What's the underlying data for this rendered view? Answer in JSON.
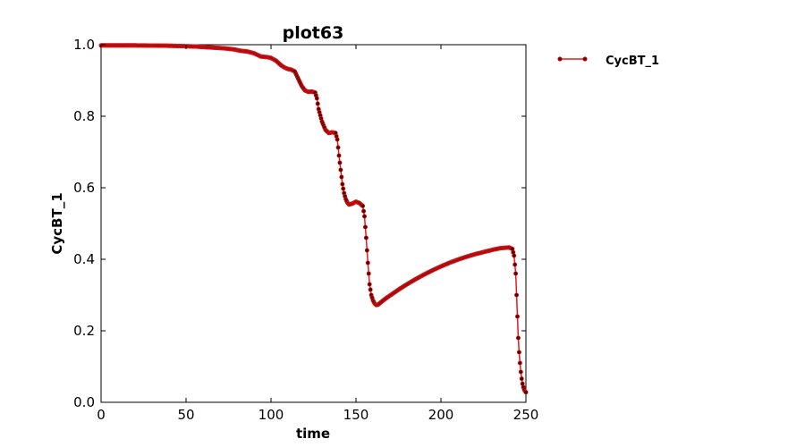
{
  "chart_data": {
    "type": "line",
    "title": "plot63",
    "xlabel": "time",
    "ylabel": "CycBT_1",
    "xlim": [
      0,
      250
    ],
    "ylim": [
      0.0,
      1.0
    ],
    "xticks": [
      "0",
      "50",
      "100",
      "150",
      "200",
      "250"
    ],
    "yticks": [
      "0.0",
      "0.2",
      "0.4",
      "0.6",
      "0.8",
      "1.0"
    ],
    "grid": false,
    "legend_position": "right, outside plot",
    "series": [
      {
        "name": "CycBT_1",
        "line_color": "#e8191c",
        "marker_color": "#5a0000",
        "x": [
          0,
          20,
          40,
          55,
          65,
          72,
          78,
          82,
          86,
          90,
          94,
          98,
          100,
          103,
          106,
          108,
          110,
          112,
          114,
          116,
          118,
          120,
          122,
          124,
          126,
          127,
          128,
          130,
          132,
          134,
          136,
          138,
          139,
          140,
          141,
          142,
          143,
          144,
          145,
          146,
          148,
          150,
          152,
          154,
          155,
          156,
          157,
          158,
          159,
          160,
          161,
          162,
          163,
          165,
          168,
          172,
          176,
          180,
          185,
          190,
          195,
          200,
          205,
          210,
          215,
          220,
          225,
          230,
          235,
          240,
          242,
          243,
          244,
          244.5,
          245,
          245.5,
          246,
          246.5,
          247,
          247.5,
          248,
          248.5,
          249,
          249.5,
          250
        ],
        "y": [
          0.998,
          0.998,
          0.997,
          0.995,
          0.992,
          0.99,
          0.987,
          0.983,
          0.981,
          0.976,
          0.967,
          0.965,
          0.963,
          0.955,
          0.942,
          0.936,
          0.932,
          0.93,
          0.925,
          0.905,
          0.885,
          0.872,
          0.868,
          0.869,
          0.866,
          0.85,
          0.82,
          0.785,
          0.762,
          0.753,
          0.755,
          0.753,
          0.735,
          0.69,
          0.65,
          0.61,
          0.585,
          0.568,
          0.558,
          0.553,
          0.556,
          0.561,
          0.557,
          0.549,
          0.52,
          0.46,
          0.39,
          0.33,
          0.3,
          0.285,
          0.276,
          0.272,
          0.273,
          0.281,
          0.292,
          0.305,
          0.318,
          0.33,
          0.344,
          0.357,
          0.369,
          0.38,
          0.39,
          0.399,
          0.407,
          0.414,
          0.42,
          0.426,
          0.431,
          0.433,
          0.429,
          0.41,
          0.36,
          0.3,
          0.24,
          0.18,
          0.14,
          0.11,
          0.085,
          0.066,
          0.052,
          0.042,
          0.035,
          0.031,
          0.028
        ]
      }
    ]
  }
}
